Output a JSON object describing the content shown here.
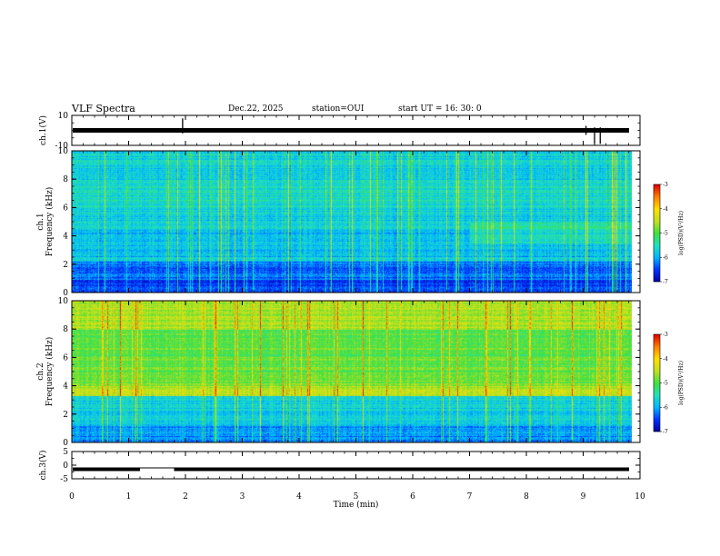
{
  "header": {
    "title": "VLF Spectra",
    "date": "Dec.22, 2025",
    "station": "station=OUI",
    "start": "start  UT =   16: 30: 0"
  },
  "chart_data": [
    {
      "type": "line",
      "panel": "ch1-waveform",
      "ylabel": "ch.1(V)",
      "yticks": [
        "10",
        "-10"
      ],
      "ylim": [
        -10,
        10
      ],
      "baseline": 0,
      "spikes": [
        {
          "t": 1.95,
          "amp_pos": 8,
          "amp_neg": -2
        },
        {
          "t": 9.05,
          "amp_pos": 3,
          "amp_neg": -3
        },
        {
          "t": 9.2,
          "amp_pos": 2,
          "amp_neg": -9
        },
        {
          "t": 9.3,
          "amp_pos": 2,
          "amp_neg": -9
        }
      ]
    },
    {
      "type": "heatmap",
      "panel": "ch1-spectrogram",
      "ylabel_line1": "ch.1",
      "ylabel_line2": "Frequency  (kHz)",
      "yticks": [
        "0",
        "2",
        "4",
        "6",
        "8",
        "10"
      ],
      "ylim": [
        0,
        10
      ],
      "xlim": [
        0,
        9.85
      ],
      "colorbar": {
        "label": "log(PSD)(V²/Hz)",
        "ticks": [
          "-3",
          "-4",
          "-5",
          "-6",
          "-7"
        ],
        "range": [
          -7,
          -3
        ]
      }
    },
    {
      "type": "heatmap",
      "panel": "ch2-spectrogram",
      "ylabel_line1": "ch.2",
      "ylabel_line2": "Frequency  (kHz)",
      "yticks": [
        "0",
        "2",
        "4",
        "6",
        "8",
        "10"
      ],
      "ylim": [
        0,
        10
      ],
      "xlim": [
        0,
        9.85
      ],
      "colorbar": {
        "label": "log(PSD)(V²/Hz)",
        "ticks": [
          "-3",
          "-4",
          "-5",
          "-6",
          "-7"
        ],
        "range": [
          -7,
          -3
        ]
      }
    },
    {
      "type": "line",
      "panel": "ch3-signal",
      "ylabel": "ch.3(V)",
      "yticks": [
        "5",
        "0",
        "-5"
      ],
      "ylim": [
        -5,
        5
      ],
      "level": -1.5,
      "gap": [
        1.2,
        1.8
      ]
    }
  ],
  "xaxis": {
    "label": "Time  (min)",
    "ticks": [
      "0",
      "1",
      "2",
      "3",
      "4",
      "5",
      "6",
      "7",
      "8",
      "9",
      "10"
    ],
    "xlim": [
      0,
      10
    ]
  },
  "colors": {
    "axis": "#000000",
    "colormap": [
      "#000000",
      "#0000a0",
      "#0030ff",
      "#00b4ff",
      "#20e0c0",
      "#40e040",
      "#c0e020",
      "#ffe000",
      "#ff8000",
      "#e00000",
      "#ffffff"
    ]
  }
}
